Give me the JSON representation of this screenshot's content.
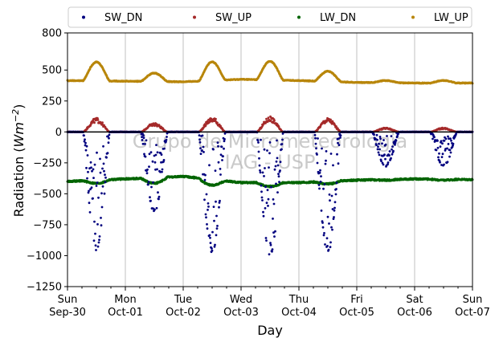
{
  "chart_data": {
    "type": "scatter",
    "xlabel": "Day",
    "ylabel_prefix": "Radiation (",
    "ylabel_unit_main": "Wm",
    "ylabel_unit_exp": "−2",
    "ylabel_suffix": ")",
    "ylim": [
      -1250,
      800
    ],
    "yticks": [
      800,
      500,
      250,
      0,
      -250,
      -500,
      -750,
      -1000,
      -1250
    ],
    "xlim": [
      0,
      7
    ],
    "x_unit": "days",
    "x_start": "Sun Sep-30",
    "xticks": [
      {
        "x": 0,
        "day": "Sun",
        "date": "Sep-30"
      },
      {
        "x": 1,
        "day": "Mon",
        "date": "Oct-01"
      },
      {
        "x": 2,
        "day": "Tue",
        "date": "Oct-02"
      },
      {
        "x": 3,
        "day": "Wed",
        "date": "Oct-03"
      },
      {
        "x": 4,
        "day": "Thu",
        "date": "Oct-04"
      },
      {
        "x": 5,
        "day": "Fri",
        "date": "Oct-05"
      },
      {
        "x": 6,
        "day": "Sat",
        "date": "Oct-06"
      },
      {
        "x": 7,
        "day": "Sun",
        "date": "Oct-07"
      }
    ],
    "grid": "vertical",
    "zero_line": true,
    "legend": {
      "placement": "top",
      "ncol": 4
    },
    "watermark": [
      "Grupo de Micrometeorologia",
      "IAG - USP"
    ],
    "series": [
      {
        "name": "SW_DN",
        "color": "#00007f",
        "daily_min": [
          -970,
          -650,
          -990,
          -1030,
          -980,
          -280,
          -280
        ]
      },
      {
        "name": "SW_UP",
        "color": "#a52a2a",
        "daily_max": [
          115,
          75,
          120,
          125,
          115,
          35,
          35
        ]
      },
      {
        "name": "LW_DN",
        "color": "#006400",
        "night_values": [
          -400,
          -380,
          -360,
          -410,
          -410,
          -390,
          -380,
          -385
        ],
        "daily_peak": [
          -415,
          -415,
          -430,
          -440,
          -420,
          -390,
          -390
        ]
      },
      {
        "name": "LW_UP",
        "color": "#b8860b",
        "night_values": [
          415,
          410,
          405,
          425,
          415,
          400,
          395,
          395
        ],
        "daily_max": [
          565,
          475,
          565,
          570,
          490,
          415,
          415
        ]
      }
    ]
  }
}
